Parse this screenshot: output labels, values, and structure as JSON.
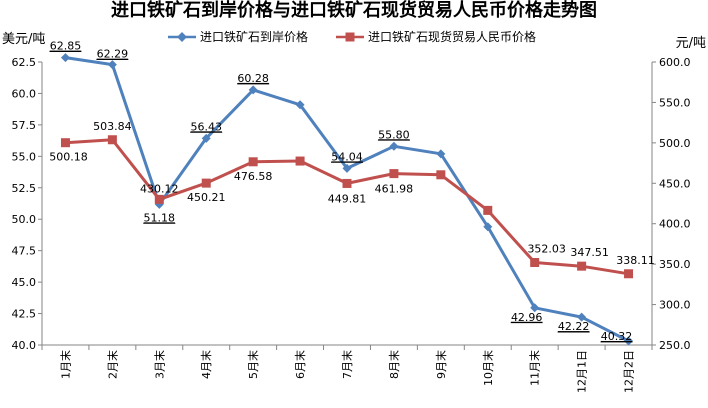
{
  "chart_data": {
    "type": "line",
    "title": "进口铁矿石到岸价格与进口铁矿石现货贸易人民币价格走势图",
    "left_unit": "美元/吨",
    "right_unit": "元/吨",
    "categories": [
      "1月末",
      "2月末",
      "3月末",
      "4月末",
      "5月末",
      "6月末",
      "7月末",
      "8月末",
      "9月末",
      "10月末",
      "11月末",
      "12月1日",
      "12月2日"
    ],
    "y_left": {
      "min": 40.0,
      "max": 62.5,
      "step": 2.5,
      "tick_labels": [
        "40.0",
        "42.5",
        "45.0",
        "47.5",
        "50.0",
        "52.5",
        "55.0",
        "57.5",
        "60.0",
        "62.5"
      ]
    },
    "y_right": {
      "min": 250.0,
      "max": 600.0,
      "step": 50,
      "tick_labels": [
        "250.0",
        "300.0",
        "350.0",
        "400.0",
        "450.0",
        "500.0",
        "550.0",
        "600.0"
      ]
    },
    "legend_position": "top",
    "series": [
      {
        "name": "进口铁矿石到岸价格",
        "axis": "left",
        "color": "#4F81BD",
        "marker": "diamond",
        "values": [
          62.85,
          62.29,
          51.18,
          56.43,
          60.28,
          59.1,
          54.04,
          55.8,
          55.2,
          49.4,
          42.96,
          42.22,
          40.32
        ],
        "labels": [
          "62.85",
          "62.29",
          "51.18",
          "56.43",
          "60.28",
          "",
          "54.04",
          "55.80",
          "",
          "",
          "42.96",
          "42.22",
          "40.32"
        ]
      },
      {
        "name": "进口铁矿石现货贸易人民币价格",
        "axis": "right",
        "color": "#C0504D",
        "marker": "square",
        "values": [
          500.18,
          503.84,
          430.12,
          450.21,
          476.58,
          477.5,
          449.81,
          461.98,
          460.5,
          416.5,
          352.03,
          347.51,
          338.11
        ],
        "labels": [
          "500.18",
          "503.84",
          "430.12",
          "450.21",
          "476.58",
          "",
          "449.81",
          "461.98",
          "",
          "",
          "352.03",
          "347.51",
          "338.11"
        ]
      }
    ]
  }
}
